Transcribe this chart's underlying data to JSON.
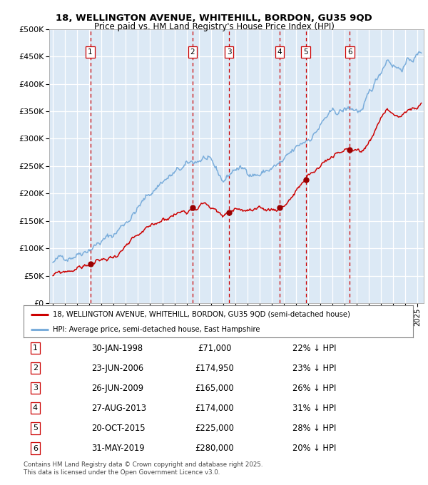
{
  "title_line1": "18, WELLINGTON AVENUE, WHITEHILL, BORDON, GU35 9QD",
  "title_line2": "Price paid vs. HM Land Registry's House Price Index (HPI)",
  "red_label": "18, WELLINGTON AVENUE, WHITEHILL, BORDON, GU35 9QD (semi-detached house)",
  "blue_label": "HPI: Average price, semi-detached house, East Hampshire",
  "footer": "Contains HM Land Registry data © Crown copyright and database right 2025.\nThis data is licensed under the Open Government Licence v3.0.",
  "transactions": [
    {
      "num": 1,
      "price": 71000,
      "x_year": 1998.08
    },
    {
      "num": 2,
      "price": 174950,
      "x_year": 2006.48
    },
    {
      "num": 3,
      "price": 165000,
      "x_year": 2009.49
    },
    {
      "num": 4,
      "price": 174000,
      "x_year": 2013.66
    },
    {
      "num": 5,
      "price": 225000,
      "x_year": 2015.8
    },
    {
      "num": 6,
      "price": 280000,
      "x_year": 2019.42
    }
  ],
  "table_rows": [
    {
      "num": 1,
      "date_str": "30-JAN-1998",
      "price_str": "£71,000",
      "pct_str": "22% ↓ HPI"
    },
    {
      "num": 2,
      "date_str": "23-JUN-2006",
      "price_str": "£174,950",
      "pct_str": "23% ↓ HPI"
    },
    {
      "num": 3,
      "date_str": "26-JUN-2009",
      "price_str": "£165,000",
      "pct_str": "26% ↓ HPI"
    },
    {
      "num": 4,
      "date_str": "27-AUG-2013",
      "price_str": "£174,000",
      "pct_str": "31% ↓ HPI"
    },
    {
      "num": 5,
      "date_str": "20-OCT-2015",
      "price_str": "£225,000",
      "pct_str": "28% ↓ HPI"
    },
    {
      "num": 6,
      "date_str": "31-MAY-2019",
      "price_str": "£280,000",
      "pct_str": "20% ↓ HPI"
    }
  ],
  "ylim": [
    0,
    500000
  ],
  "yticks": [
    0,
    50000,
    100000,
    150000,
    200000,
    250000,
    300000,
    350000,
    400000,
    450000,
    500000
  ],
  "xlim_start": 1994.7,
  "xlim_end": 2025.5,
  "background_color": "#dce9f5",
  "grid_color": "#ffffff",
  "red_color": "#cc0000",
  "blue_color": "#7aaddb",
  "vline_color": "#cc0000",
  "tx_dot_color": "#990000"
}
